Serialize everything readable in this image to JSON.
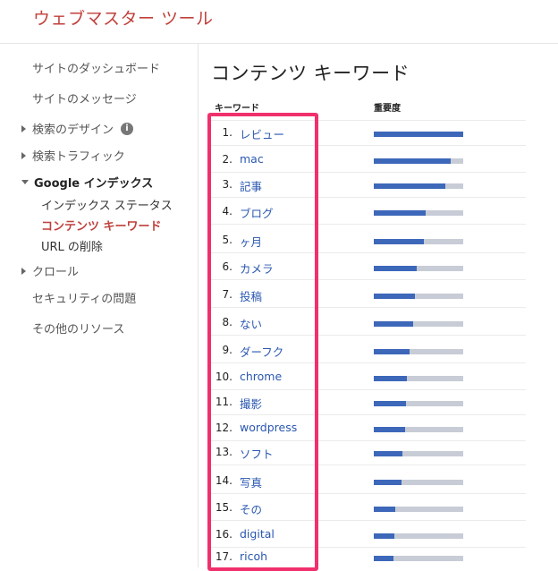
{
  "app": {
    "title": "ウェブマスター ツール"
  },
  "sidebar": {
    "items": [
      {
        "label": "サイトのダッシュボード"
      },
      {
        "label": "サイトのメッセージ"
      },
      {
        "label": "検索のデザイン",
        "info_icon": "i"
      },
      {
        "label": "検索トラフィック"
      },
      {
        "label": "Google インデックス"
      },
      {
        "label": "インデックス ステータス"
      },
      {
        "label": "コンテンツ キーワード"
      },
      {
        "label": "URL の削除"
      },
      {
        "label": "クロール"
      },
      {
        "label": "セキュリティの問題"
      },
      {
        "label": "その他のリソース"
      }
    ],
    "active_color": "#c0413b"
  },
  "main": {
    "title": "コンテンツ キーワード",
    "columns": {
      "keyword": "キーワード",
      "importance": "重要度"
    },
    "rows": [
      {
        "rank": "1.",
        "keyword": "レビュー",
        "importance": 1.0
      },
      {
        "rank": "2.",
        "keyword": "mac",
        "importance": 0.86
      },
      {
        "rank": "3.",
        "keyword": "記事",
        "importance": 0.8
      },
      {
        "rank": "4.",
        "keyword": "ブログ",
        "importance": 0.58
      },
      {
        "rank": "5.",
        "keyword": "ヶ月",
        "importance": 0.56
      },
      {
        "rank": "6.",
        "keyword": "カメラ",
        "importance": 0.48
      },
      {
        "rank": "7.",
        "keyword": "投稿",
        "importance": 0.46
      },
      {
        "rank": "8.",
        "keyword": "ない",
        "importance": 0.44
      },
      {
        "rank": "9.",
        "keyword": "ダーフク",
        "importance": 0.4
      },
      {
        "rank": "10.",
        "keyword": "chrome",
        "importance": 0.37
      },
      {
        "rank": "11.",
        "keyword": "撮影",
        "importance": 0.36
      },
      {
        "rank": "12.",
        "keyword": "wordpress",
        "importance": 0.35
      },
      {
        "rank": "13.",
        "keyword": "ソフト",
        "importance": 0.32
      },
      {
        "rank": "14.",
        "keyword": "写真",
        "importance": 0.31
      },
      {
        "rank": "15.",
        "keyword": "その",
        "importance": 0.24
      },
      {
        "rank": "16.",
        "keyword": "digital",
        "importance": 0.23
      },
      {
        "rank": "17.",
        "keyword": "ricoh",
        "importance": 0.22
      }
    ],
    "bar_color": "#3d67b9",
    "bar_track_color": "#c7ccd6",
    "keyword_color": "#2a57b0",
    "highlight_color": "#f0306c"
  }
}
